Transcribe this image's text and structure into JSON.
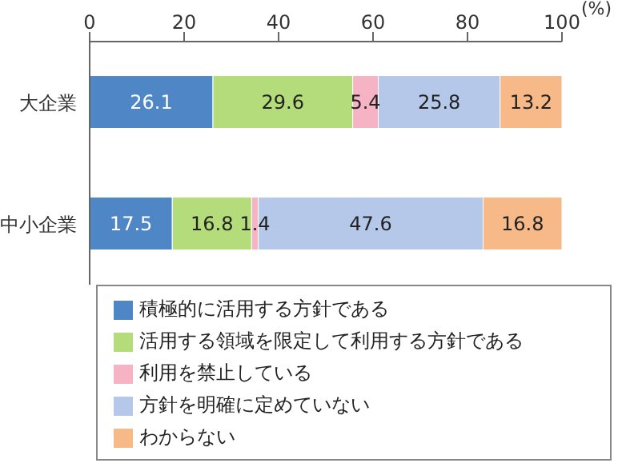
{
  "chart_data": {
    "type": "bar",
    "orientation": "horizontal",
    "stacked": true,
    "categories": [
      "大企業",
      "中小企業"
    ],
    "xlabel": "(%)",
    "xlim": [
      0,
      100
    ],
    "xticks": [
      0,
      20,
      40,
      60,
      80,
      100
    ],
    "data_labels": true,
    "legend": "bottom",
    "grid": false,
    "series": [
      {
        "name": "積極的に活用する方針である",
        "color": "#4f86c6",
        "values": [
          26.1,
          17.5
        ]
      },
      {
        "name": "活用する領域を限定して利用する方針である",
        "color": "#b5dc7a",
        "values": [
          29.6,
          16.8
        ]
      },
      {
        "name": "利用を禁止している",
        "color": "#f5b3c3",
        "values": [
          5.4,
          1.4
        ]
      },
      {
        "name": "方針を明確に定めていない",
        "color": "#b6c8ea",
        "values": [
          25.8,
          47.6
        ]
      },
      {
        "name": "わからない",
        "color": "#f6b987",
        "values": [
          13.2,
          16.8
        ]
      }
    ]
  }
}
